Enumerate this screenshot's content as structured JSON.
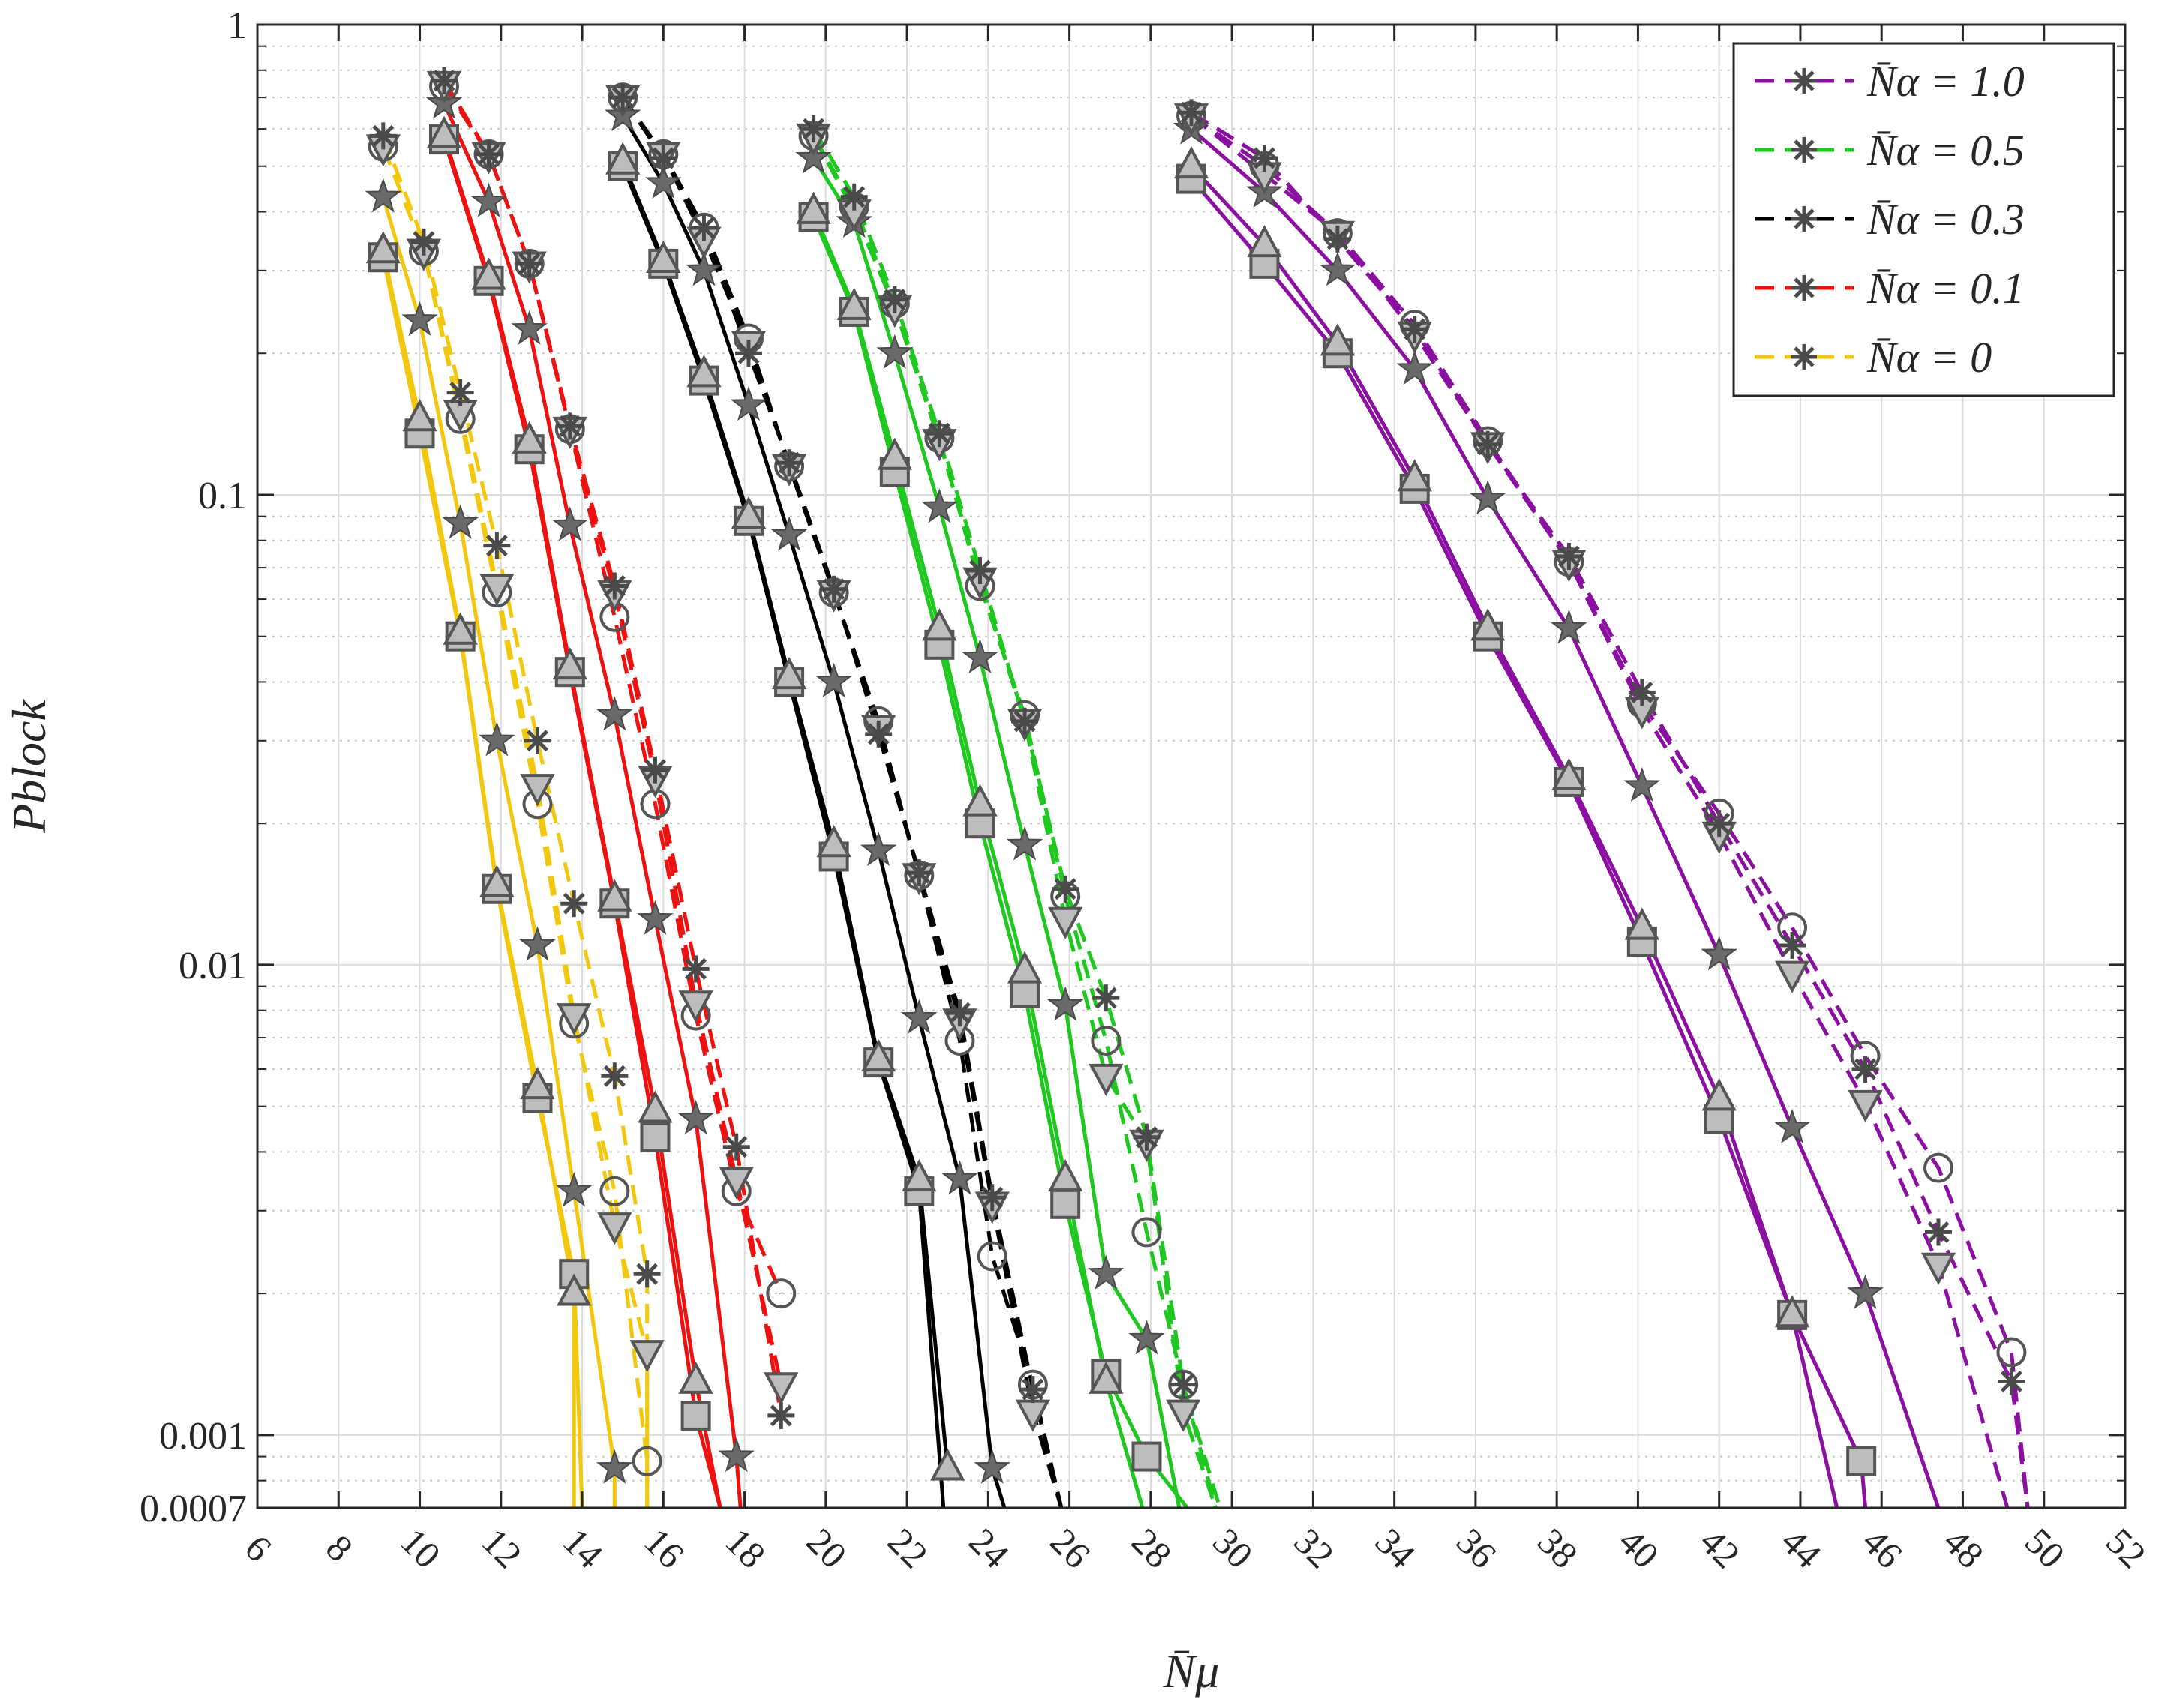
{
  "chart_data": {
    "type": "line",
    "xlabel": "N̄μ",
    "ylabel": "Pblock",
    "xlim": [
      6,
      52
    ],
    "ylim": [
      0.0007,
      1
    ],
    "yscale": "log",
    "grid": true,
    "legend_position": "top-right",
    "xticks": [
      "6",
      "8",
      "10",
      "12",
      "14",
      "16",
      "18",
      "20",
      "22",
      "24",
      "26",
      "28",
      "30",
      "32",
      "34",
      "36",
      "38",
      "40",
      "42",
      "44",
      "46",
      "48",
      "50",
      "52"
    ],
    "yticks": [
      {
        "value": 1,
        "label": "1"
      },
      {
        "value": 0.1,
        "label": "0.1"
      },
      {
        "value": 0.01,
        "label": "0.01"
      },
      {
        "value": 0.001,
        "label": "0.001"
      },
      {
        "value": 0.0007,
        "label": "0.0007"
      }
    ],
    "legend": [
      {
        "label": "N̄α = 1.0",
        "color": "#8b0fa0"
      },
      {
        "label": "N̄α = 0.5",
        "color": "#1ec81e"
      },
      {
        "label": "N̄α = 0.3",
        "color": "#000000"
      },
      {
        "label": "N̄α = 0.1",
        "color": "#ee1111"
      },
      {
        "label": "N̄α = 0",
        "color": "#f2c80f"
      }
    ],
    "series": [
      {
        "group": "0",
        "color": "#f2c80f",
        "dash": false,
        "marker": "square",
        "x": [
          9.1,
          10.0,
          11.0,
          11.9,
          12.9,
          13.8,
          14.0
        ],
        "y": [
          0.32,
          0.135,
          0.05,
          0.0145,
          0.0052,
          0.0022,
          0.0007
        ]
      },
      {
        "group": "0",
        "color": "#f2c80f",
        "dash": false,
        "marker": "triangle-up",
        "x": [
          9.1,
          10.0,
          11.0,
          11.9,
          12.9,
          13.8,
          13.8
        ],
        "y": [
          0.33,
          0.145,
          0.051,
          0.0148,
          0.0055,
          0.002,
          0.0007
        ]
      },
      {
        "group": "0",
        "color": "#f2c80f",
        "dash": false,
        "marker": "star",
        "x": [
          9.1,
          10.0,
          11.0,
          11.9,
          12.9,
          13.8,
          14.8,
          14.8
        ],
        "y": [
          0.43,
          0.235,
          0.087,
          0.03,
          0.011,
          0.0033,
          0.00085,
          0.0007
        ]
      },
      {
        "group": "0",
        "color": "#f2c80f",
        "dash": true,
        "marker": "circle",
        "x": [
          9.1,
          10.1,
          11.0,
          11.9,
          12.9,
          13.8,
          14.8,
          15.6,
          15.6
        ],
        "y": [
          0.55,
          0.33,
          0.145,
          0.062,
          0.022,
          0.0075,
          0.0033,
          0.00088,
          0.0007
        ]
      },
      {
        "group": "0",
        "color": "#f2c80f",
        "dash": true,
        "marker": "triangle-down",
        "x": [
          9.1,
          10.1,
          11.0,
          11.9,
          12.9,
          13.8,
          14.8,
          15.6,
          15.6
        ],
        "y": [
          0.55,
          0.33,
          0.15,
          0.064,
          0.024,
          0.0078,
          0.0028,
          0.0015,
          0.0007
        ]
      },
      {
        "group": "0",
        "color": "#f2c80f",
        "dash": true,
        "marker": "asterisk",
        "x": [
          9.1,
          10.1,
          11.0,
          11.9,
          12.9,
          13.8,
          14.8,
          15.6,
          15.6
        ],
        "y": [
          0.58,
          0.345,
          0.165,
          0.078,
          0.03,
          0.0135,
          0.0058,
          0.0022,
          0.0007
        ]
      },
      {
        "group": "0.1",
        "color": "#ee1111",
        "dash": false,
        "marker": "square",
        "x": [
          10.6,
          11.7,
          12.7,
          13.7,
          14.8,
          15.8,
          16.8,
          17.4
        ],
        "y": [
          0.57,
          0.285,
          0.125,
          0.042,
          0.0135,
          0.0043,
          0.0011,
          0.0007
        ]
      },
      {
        "group": "0.1",
        "color": "#ee1111",
        "dash": false,
        "marker": "triangle-up",
        "x": [
          10.6,
          11.7,
          12.7,
          13.7,
          14.8,
          15.8,
          16.8,
          17.4
        ],
        "y": [
          0.58,
          0.29,
          0.13,
          0.043,
          0.0138,
          0.0049,
          0.0013,
          0.0007
        ]
      },
      {
        "group": "0.1",
        "color": "#ee1111",
        "dash": false,
        "marker": "star",
        "x": [
          10.6,
          11.7,
          12.7,
          13.7,
          14.8,
          15.8,
          16.8,
          17.8,
          17.9
        ],
        "y": [
          0.68,
          0.42,
          0.225,
          0.086,
          0.034,
          0.0125,
          0.0047,
          0.0009,
          0.0007
        ]
      },
      {
        "group": "0.1",
        "color": "#ee1111",
        "dash": true,
        "marker": "circle",
        "x": [
          10.6,
          11.7,
          12.7,
          13.7,
          14.8,
          15.8,
          16.8,
          17.8,
          18.9
        ],
        "y": [
          0.74,
          0.53,
          0.31,
          0.138,
          0.055,
          0.022,
          0.0078,
          0.0033,
          0.002
        ]
      },
      {
        "group": "0.1",
        "color": "#ee1111",
        "dash": true,
        "marker": "triangle-down",
        "x": [
          10.6,
          11.7,
          12.7,
          13.7,
          14.8,
          15.8,
          16.8,
          17.8,
          18.9
        ],
        "y": [
          0.75,
          0.53,
          0.31,
          0.138,
          0.062,
          0.025,
          0.0083,
          0.0035,
          0.00128
        ]
      },
      {
        "group": "0.1",
        "color": "#ee1111",
        "dash": true,
        "marker": "asterisk",
        "x": [
          10.6,
          11.7,
          12.7,
          13.7,
          14.8,
          15.8,
          16.8,
          17.8,
          18.9
        ],
        "y": [
          0.76,
          0.53,
          0.31,
          0.14,
          0.064,
          0.026,
          0.0098,
          0.0041,
          0.0011
        ]
      },
      {
        "group": "0.3",
        "color": "#000000",
        "dash": false,
        "marker": "square",
        "x": [
          15.0,
          16.0,
          17.0,
          18.1,
          19.1,
          20.2,
          21.3,
          22.3,
          22.9
        ],
        "y": [
          0.5,
          0.31,
          0.175,
          0.088,
          0.04,
          0.017,
          0.0062,
          0.0033,
          0.0007
        ]
      },
      {
        "group": "0.3",
        "color": "#000000",
        "dash": false,
        "marker": "triangle-up",
        "x": [
          15.0,
          16.0,
          17.0,
          18.1,
          19.1,
          20.2,
          21.3,
          22.3,
          23.0
        ],
        "y": [
          0.51,
          0.315,
          0.18,
          0.09,
          0.041,
          0.018,
          0.0063,
          0.0035,
          0.00085
        ]
      },
      {
        "group": "0.3",
        "color": "#000000",
        "dash": false,
        "marker": "star",
        "x": [
          15.0,
          16.0,
          17.0,
          18.1,
          19.1,
          20.2,
          21.3,
          22.3,
          23.3,
          24.1,
          24.4
        ],
        "y": [
          0.64,
          0.46,
          0.3,
          0.155,
          0.082,
          0.04,
          0.0175,
          0.0077,
          0.0035,
          0.00085,
          0.0007
        ]
      },
      {
        "group": "0.3",
        "color": "#000000",
        "dash": true,
        "marker": "circle",
        "x": [
          15.0,
          16.0,
          17.0,
          18.1,
          19.1,
          20.2,
          21.3,
          22.3,
          23.3,
          24.1,
          25.1,
          25.8
        ],
        "y": [
          0.7,
          0.53,
          0.37,
          0.215,
          0.115,
          0.062,
          0.033,
          0.0155,
          0.0069,
          0.0024,
          0.00128,
          0.0007
        ]
      },
      {
        "group": "0.3",
        "color": "#000000",
        "dash": true,
        "marker": "triangle-down",
        "x": [
          15.0,
          16.0,
          17.0,
          18.1,
          19.1,
          20.2,
          21.3,
          22.3,
          23.3,
          24.1,
          25.1,
          25.8
        ],
        "y": [
          0.7,
          0.53,
          0.35,
          0.21,
          0.115,
          0.062,
          0.032,
          0.0155,
          0.0076,
          0.0031,
          0.00112,
          0.0007
        ]
      },
      {
        "group": "0.3",
        "color": "#000000",
        "dash": true,
        "marker": "asterisk",
        "x": [
          15.0,
          16.0,
          17.0,
          18.1,
          19.1,
          20.2,
          21.3,
          22.3,
          23.3,
          24.1,
          25.1,
          25.8
        ],
        "y": [
          0.7,
          0.52,
          0.37,
          0.2,
          0.117,
          0.063,
          0.031,
          0.0157,
          0.0079,
          0.0032,
          0.00125,
          0.0007
        ]
      },
      {
        "group": "0.5",
        "color": "#1ec81e",
        "dash": false,
        "marker": "square",
        "x": [
          19.7,
          20.7,
          21.7,
          22.8,
          23.8,
          24.9,
          25.9,
          26.9,
          27.9,
          28.9
        ],
        "y": [
          0.39,
          0.245,
          0.112,
          0.048,
          0.02,
          0.0087,
          0.0031,
          0.00135,
          0.0009,
          0.0007
        ]
      },
      {
        "group": "0.5",
        "color": "#1ec81e",
        "dash": false,
        "marker": "triangle-up",
        "x": [
          19.7,
          20.7,
          21.7,
          22.8,
          23.8,
          24.9,
          25.9,
          26.9,
          27.8
        ],
        "y": [
          0.4,
          0.25,
          0.12,
          0.052,
          0.022,
          0.0097,
          0.0035,
          0.0013,
          0.0007
        ]
      },
      {
        "group": "0.5",
        "color": "#1ec81e",
        "dash": false,
        "marker": "star",
        "x": [
          19.7,
          20.7,
          21.7,
          22.8,
          23.8,
          24.9,
          25.9,
          26.9,
          27.9,
          28.7
        ],
        "y": [
          0.52,
          0.38,
          0.2,
          0.094,
          0.045,
          0.018,
          0.0082,
          0.0022,
          0.0016,
          0.0007
        ]
      },
      {
        "group": "0.5",
        "color": "#1ec81e",
        "dash": true,
        "marker": "circle",
        "x": [
          19.7,
          20.7,
          21.7,
          22.8,
          23.8,
          24.9,
          25.9,
          26.9,
          27.9,
          28.8,
          29.7
        ],
        "y": [
          0.58,
          0.41,
          0.255,
          0.132,
          0.064,
          0.034,
          0.014,
          0.0069,
          0.0027,
          0.00128,
          0.0007
        ]
      },
      {
        "group": "0.5",
        "color": "#1ec81e",
        "dash": true,
        "marker": "triangle-down",
        "x": [
          19.7,
          20.7,
          21.7,
          22.8,
          23.8,
          24.9,
          25.9,
          26.9,
          27.9,
          28.8,
          29.6
        ],
        "y": [
          0.58,
          0.4,
          0.25,
          0.13,
          0.066,
          0.033,
          0.0125,
          0.0058,
          0.0042,
          0.00112,
          0.0007
        ]
      },
      {
        "group": "0.5",
        "color": "#1ec81e",
        "dash": true,
        "marker": "asterisk",
        "x": [
          19.7,
          20.7,
          21.7,
          22.8,
          23.8,
          24.9,
          25.9,
          26.9,
          27.9,
          28.8,
          29.6
        ],
        "y": [
          0.6,
          0.43,
          0.26,
          0.135,
          0.069,
          0.033,
          0.0145,
          0.0085,
          0.0043,
          0.00128,
          0.0007
        ]
      },
      {
        "group": "1.0",
        "color": "#8b0fa0",
        "dash": false,
        "marker": "square",
        "x": [
          29.0,
          30.8,
          32.6,
          34.5,
          36.3,
          38.3,
          40.1,
          42.0,
          43.8,
          45.5,
          45.6
        ],
        "y": [
          0.47,
          0.31,
          0.2,
          0.103,
          0.05,
          0.0245,
          0.0112,
          0.0047,
          0.0018,
          0.00088,
          0.0007
        ]
      },
      {
        "group": "1.0",
        "color": "#8b0fa0",
        "dash": false,
        "marker": "triangle-up",
        "x": [
          29.0,
          30.8,
          32.6,
          34.5,
          36.3,
          38.3,
          40.1,
          42.0,
          43.8,
          44.9
        ],
        "y": [
          0.5,
          0.34,
          0.21,
          0.108,
          0.052,
          0.025,
          0.012,
          0.0052,
          0.0018,
          0.0007
        ]
      },
      {
        "group": "1.0",
        "color": "#8b0fa0",
        "dash": false,
        "marker": "star",
        "x": [
          29.0,
          30.8,
          32.6,
          34.5,
          36.3,
          38.3,
          40.1,
          42.0,
          43.8,
          45.6,
          47.4
        ],
        "y": [
          0.6,
          0.44,
          0.3,
          0.185,
          0.098,
          0.052,
          0.024,
          0.0105,
          0.0045,
          0.002,
          0.0007
        ]
      },
      {
        "group": "1.0",
        "color": "#8b0fa0",
        "dash": true,
        "marker": "circle",
        "x": [
          29.0,
          30.8,
          32.6,
          34.5,
          36.3,
          38.3,
          40.1,
          42.0,
          43.8,
          45.6,
          47.4,
          49.2,
          49.6
        ],
        "y": [
          0.64,
          0.5,
          0.36,
          0.23,
          0.13,
          0.072,
          0.036,
          0.021,
          0.012,
          0.0064,
          0.0037,
          0.0015,
          0.0007
        ]
      },
      {
        "group": "1.0",
        "color": "#8b0fa0",
        "dash": true,
        "marker": "triangle-down",
        "x": [
          29.0,
          30.8,
          32.6,
          34.5,
          36.3,
          38.3,
          40.1,
          42.0,
          43.8,
          45.6,
          47.4,
          49.1
        ],
        "y": [
          0.64,
          0.48,
          0.36,
          0.22,
          0.128,
          0.072,
          0.035,
          0.019,
          0.0096,
          0.0051,
          0.0023,
          0.0007
        ]
      },
      {
        "group": "1.0",
        "color": "#8b0fa0",
        "dash": true,
        "marker": "asterisk",
        "x": [
          29.0,
          30.8,
          32.6,
          34.5,
          36.3,
          38.3,
          40.1,
          42.0,
          43.8,
          45.6,
          47.4,
          49.2,
          49.6
        ],
        "y": [
          0.65,
          0.52,
          0.35,
          0.225,
          0.128,
          0.074,
          0.038,
          0.02,
          0.011,
          0.006,
          0.0027,
          0.0013,
          0.0007
        ]
      }
    ]
  }
}
